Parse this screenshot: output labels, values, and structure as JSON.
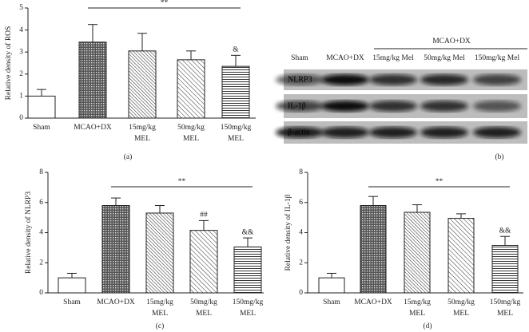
{
  "chart_data": [
    {
      "type": "bar",
      "panel_label": "(a)",
      "y_label": "Relative density of ROS",
      "categories": [
        [
          "Sham"
        ],
        [
          "MCAO+DX"
        ],
        [
          "15mg/kg",
          "MEL"
        ],
        [
          "50mg/kg",
          "MEL"
        ],
        [
          "150mg/kg",
          "MEL"
        ]
      ],
      "values": [
        1.0,
        3.45,
        3.05,
        2.65,
        2.35
      ],
      "errors": [
        0.3,
        0.8,
        0.8,
        0.4,
        0.5
      ],
      "bar_labels": [
        null,
        null,
        null,
        null,
        "&"
      ],
      "significance": "**",
      "color": "#222222",
      "ylim": [
        0,
        5
      ],
      "yticks": [
        0,
        1,
        2,
        3,
        4,
        5
      ]
    },
    {
      "type": "bar",
      "panel_label": "(c)",
      "y_label": "Relative density of NLRP3",
      "categories": [
        [
          "Sham"
        ],
        [
          "MCAO+DX"
        ],
        [
          "15mg/kg",
          "MEL"
        ],
        [
          "50mg/kg",
          "MEL"
        ],
        [
          "150mg/kg",
          "MEL"
        ]
      ],
      "values": [
        1.0,
        5.8,
        5.3,
        4.15,
        3.05
      ],
      "errors": [
        0.3,
        0.5,
        0.5,
        0.65,
        0.6
      ],
      "bar_labels": [
        null,
        null,
        null,
        "##",
        "&&"
      ],
      "significance": "**",
      "color": "#222222",
      "ylim": [
        0,
        8
      ],
      "yticks": [
        0,
        2,
        4,
        6,
        8
      ]
    },
    {
      "type": "bar",
      "panel_label": "(d)",
      "y_label": "Relative density of IL-1β",
      "categories": [
        [
          "Sham"
        ],
        [
          "MCAO+DX"
        ],
        [
          "15mg/kg",
          "MEL"
        ],
        [
          "50mg/kg",
          "MEL"
        ],
        [
          "150mg/kg",
          "MEL"
        ]
      ],
      "values": [
        1.0,
        5.8,
        5.35,
        4.95,
        3.15
      ],
      "errors": [
        0.3,
        0.6,
        0.5,
        0.3,
        0.6
      ],
      "bar_labels": [
        null,
        null,
        null,
        null,
        "&&"
      ],
      "significance": "**",
      "color": "#222222",
      "ylim": [
        0,
        8
      ],
      "yticks": [
        0,
        2,
        4,
        6,
        8
      ]
    }
  ],
  "blot": {
    "panel_label": "(b)",
    "group_label": "MCAO+DX",
    "lanes": [
      "Sham",
      "MCAO+DX",
      "15mg/kg Mel",
      "50mg/kg Mel",
      "150mg/kg Mel"
    ],
    "rows": [
      "NLRP3",
      "IL-1β",
      "β-actin"
    ]
  }
}
